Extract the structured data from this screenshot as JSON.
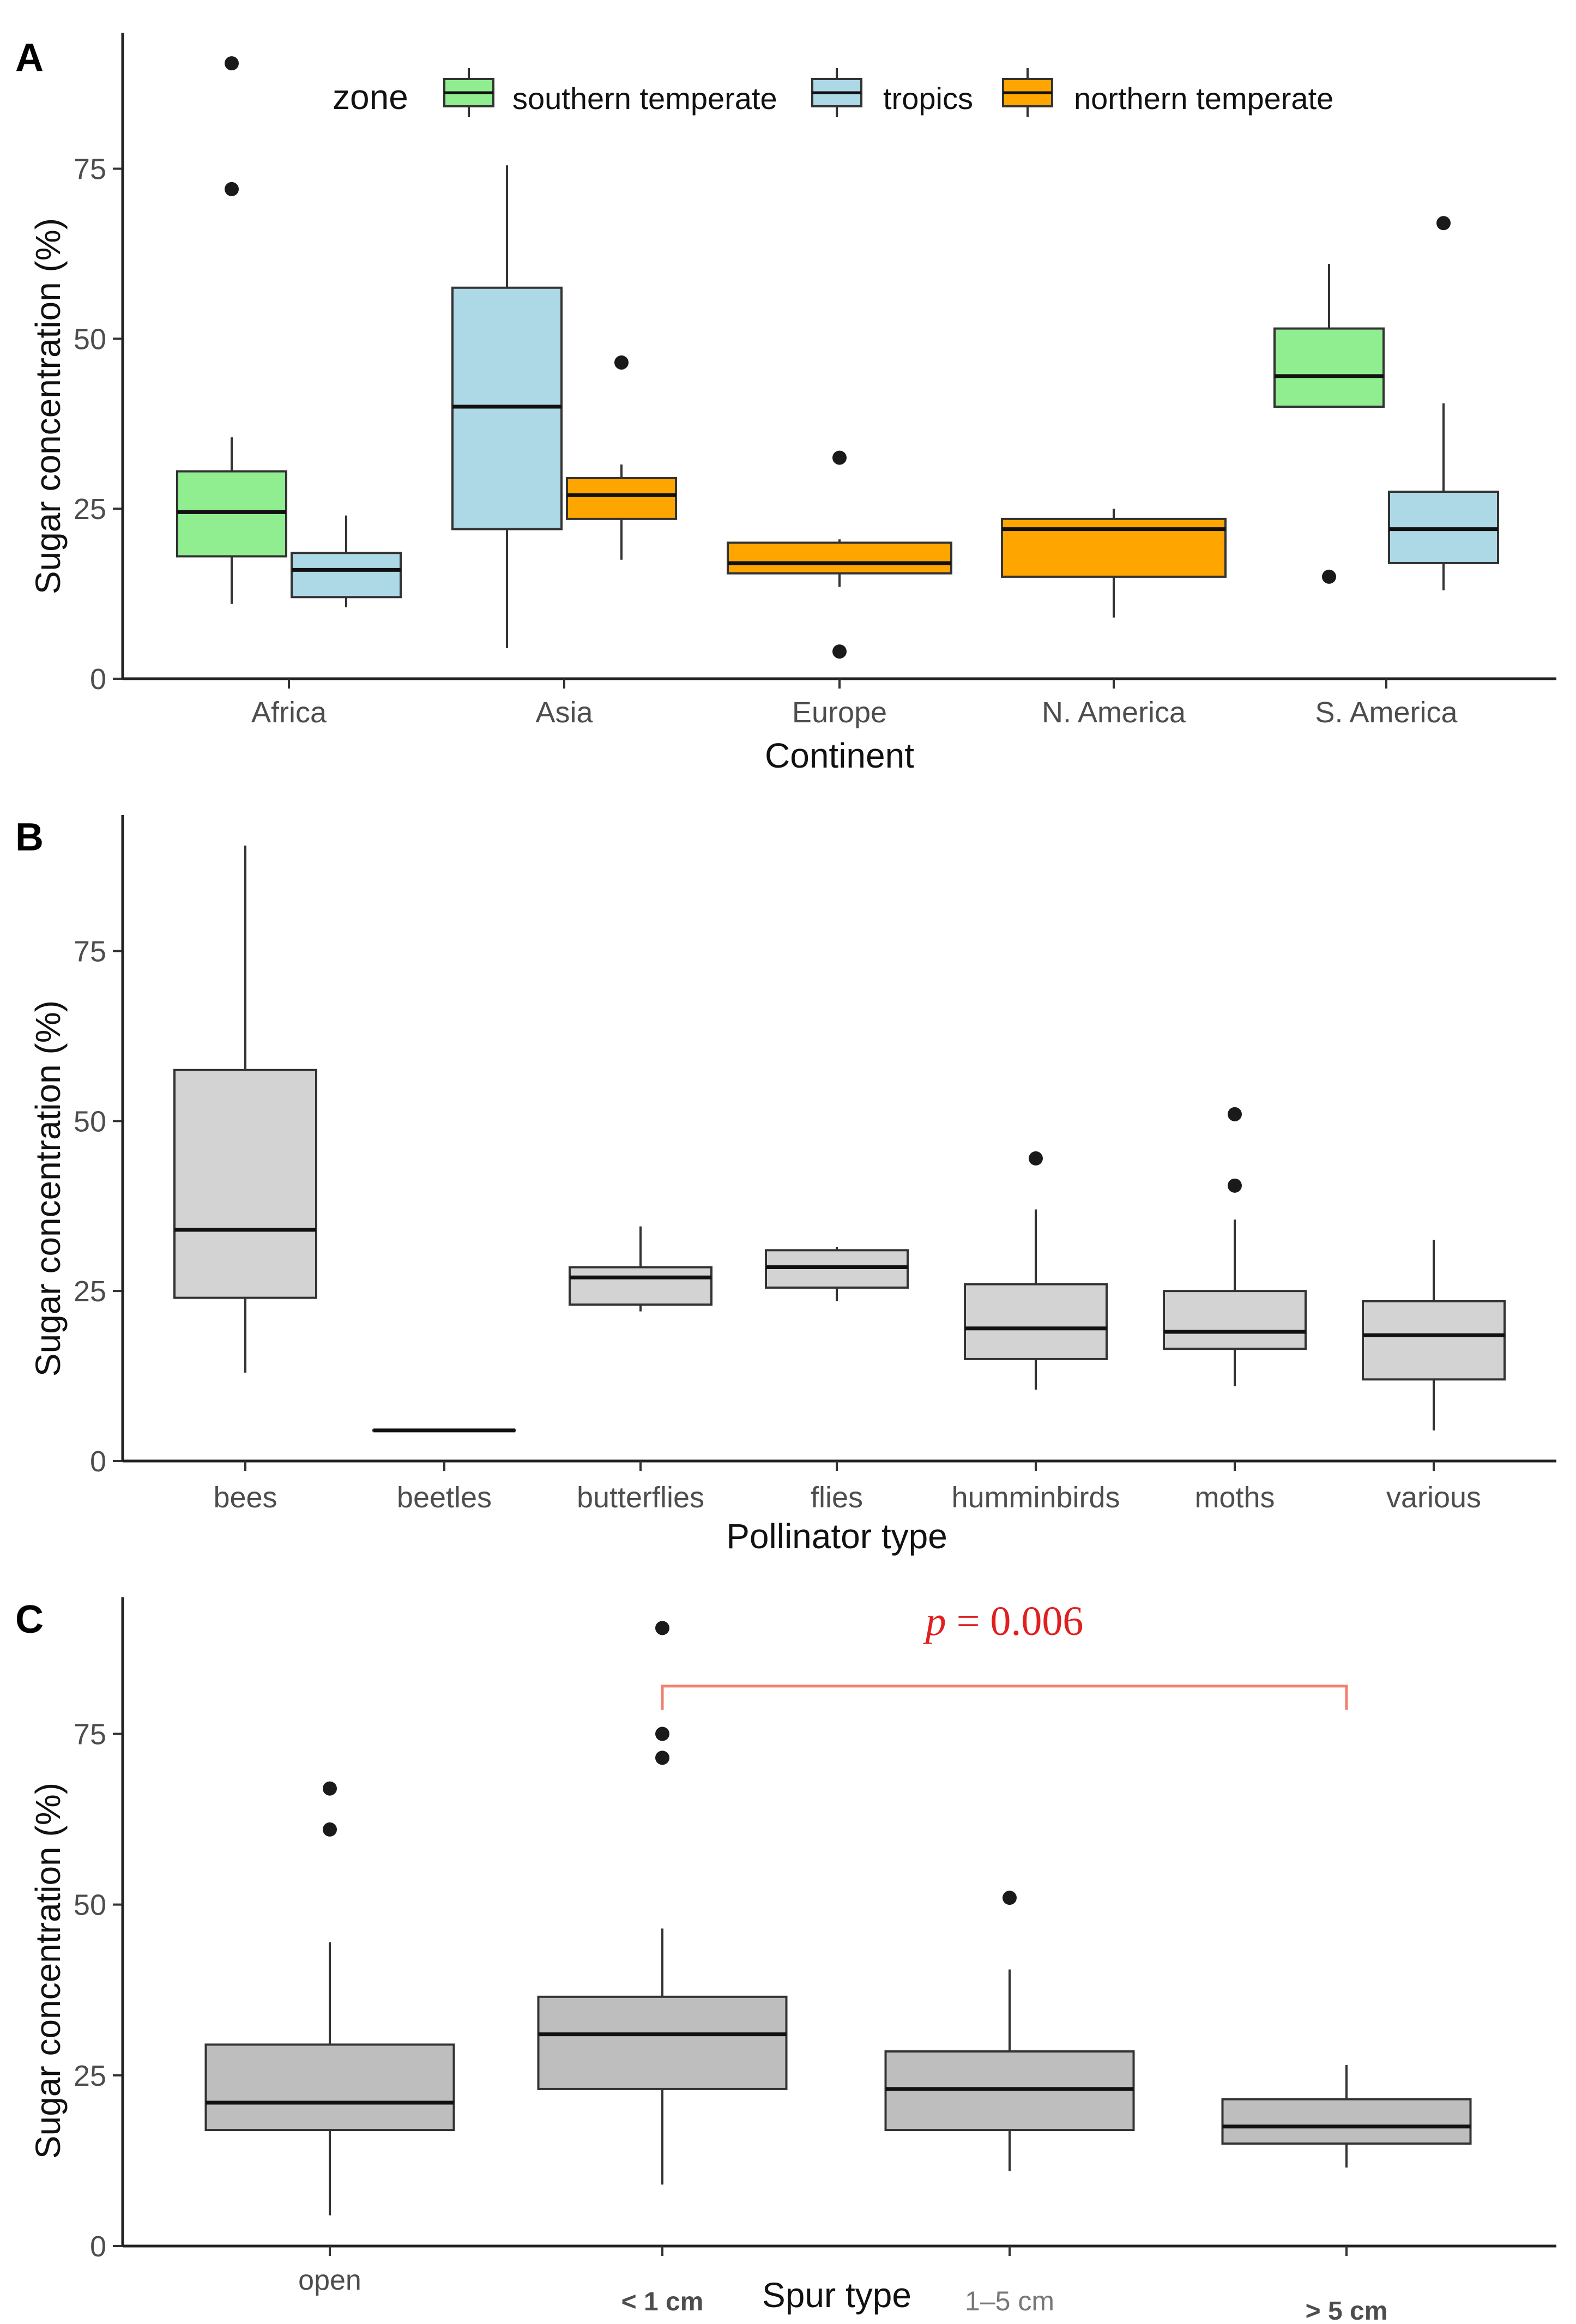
{
  "chart_data": [
    {
      "panel": "A",
      "type": "boxplot",
      "xlabel": "Continent",
      "ylabel": "Sugar concentration (%)",
      "ylim": [
        0,
        95
      ],
      "yticks": [
        0,
        25,
        50,
        75
      ],
      "categories": [
        "Africa",
        "Asia",
        "Europe",
        "N. America",
        "S. America"
      ],
      "legend": {
        "title": "zone",
        "position": "top",
        "entries": [
          {
            "name": "southern temperate",
            "color": "#90ee90"
          },
          {
            "name": "tropics",
            "color": "#add8e6"
          },
          {
            "name": "northern temperate",
            "color": "#ffa500"
          }
        ]
      },
      "boxes": [
        {
          "category": "Africa",
          "zone": "southern temperate",
          "min": 11,
          "q1": 18,
          "median": 24.5,
          "q3": 30.5,
          "max": 35.5,
          "outliers": [
            72,
            90.5
          ]
        },
        {
          "category": "Africa",
          "zone": "tropics",
          "min": 10.5,
          "q1": 12,
          "median": 16,
          "q3": 18.5,
          "max": 24,
          "outliers": []
        },
        {
          "category": "Asia",
          "zone": "tropics",
          "min": 4.5,
          "q1": 22,
          "median": 40,
          "q3": 57.5,
          "max": 75.5,
          "outliers": []
        },
        {
          "category": "Asia",
          "zone": "northern temperate",
          "min": 17.5,
          "q1": 23.5,
          "median": 27,
          "q3": 29.5,
          "max": 31.5,
          "outliers": [
            46.5
          ]
        },
        {
          "category": "Europe",
          "zone": "northern temperate",
          "min": 13.5,
          "q1": 15.5,
          "median": 17,
          "q3": 20,
          "max": 20.5,
          "outliers": [
            32.5,
            4
          ]
        },
        {
          "category": "N. America",
          "zone": "northern temperate",
          "min": 9,
          "q1": 15,
          "median": 22,
          "q3": 23.5,
          "max": 25,
          "outliers": []
        },
        {
          "category": "S. America",
          "zone": "southern temperate",
          "min": 40,
          "q1": 40,
          "median": 44.5,
          "q3": 51.5,
          "max": 61,
          "outliers": [
            15
          ]
        },
        {
          "category": "S. America",
          "zone": "tropics",
          "min": 13,
          "q1": 17,
          "median": 22,
          "q3": 27.5,
          "max": 40.5,
          "outliers": [
            67
          ]
        }
      ]
    },
    {
      "panel": "B",
      "type": "boxplot",
      "xlabel": "Pollinator type",
      "ylabel": "Sugar concentration (%)",
      "ylim": [
        0,
        95
      ],
      "yticks": [
        0,
        25,
        50,
        75
      ],
      "categories": [
        "bees",
        "beetles",
        "butterflies",
        "flies",
        "humminbirds",
        "moths",
        "various"
      ],
      "fill": "#d3d3d3",
      "boxes": [
        {
          "category": "bees",
          "min": 13,
          "q1": 24,
          "median": 34,
          "q3": 57.5,
          "max": 90.5,
          "outliers": []
        },
        {
          "category": "beetles",
          "min": 4.5,
          "q1": 4.5,
          "median": 4.5,
          "q3": 4.5,
          "max": 4.5,
          "outliers": []
        },
        {
          "category": "butterflies",
          "min": 22,
          "q1": 23,
          "median": 27,
          "q3": 28.5,
          "max": 34.5,
          "outliers": []
        },
        {
          "category": "flies",
          "min": 23.5,
          "q1": 25.5,
          "median": 28.5,
          "q3": 31,
          "max": 31.5,
          "outliers": []
        },
        {
          "category": "humminbirds",
          "min": 10.5,
          "q1": 15,
          "median": 19.5,
          "q3": 26,
          "max": 37,
          "outliers": [
            44.5
          ]
        },
        {
          "category": "moths",
          "min": 11,
          "q1": 16.5,
          "median": 19,
          "q3": 25,
          "max": 35.5,
          "outliers": [
            40.5,
            51
          ]
        },
        {
          "category": "various",
          "min": 4.5,
          "q1": 12,
          "median": 18.5,
          "q3": 23.5,
          "max": 32.5,
          "outliers": []
        }
      ]
    },
    {
      "panel": "C",
      "type": "boxplot",
      "xlabel": "Spur type",
      "ylabel": "Sugar concentration (%)",
      "ylim": [
        0,
        95
      ],
      "yticks": [
        0,
        25,
        50,
        75
      ],
      "categories": [
        "open",
        "< 1 cm",
        "1–5 cm",
        "> 5 cm"
      ],
      "fill": "#bebebe",
      "boxes": [
        {
          "category": "open",
          "min": 4.5,
          "q1": 17,
          "median": 21,
          "q3": 29.5,
          "max": 44.5,
          "outliers": [
            61,
            67
          ]
        },
        {
          "category": "< 1 cm",
          "min": 9,
          "q1": 23,
          "median": 31,
          "q3": 36.5,
          "max": 46.5,
          "outliers": [
            71.5,
            75,
            90.5
          ]
        },
        {
          "category": "1–5 cm",
          "min": 11,
          "q1": 17,
          "median": 23,
          "q3": 28.5,
          "max": 40.5,
          "outliers": [
            51
          ]
        },
        {
          "category": "> 5 cm",
          "min": 11.5,
          "q1": 15,
          "median": 17.5,
          "q3": 21.5,
          "max": 26.5,
          "outliers": []
        }
      ],
      "annotation": {
        "from": "< 1 cm",
        "to": "> 5 cm",
        "p_label": "p",
        "p_value": "= 0.006",
        "color": "#f08070"
      }
    }
  ]
}
